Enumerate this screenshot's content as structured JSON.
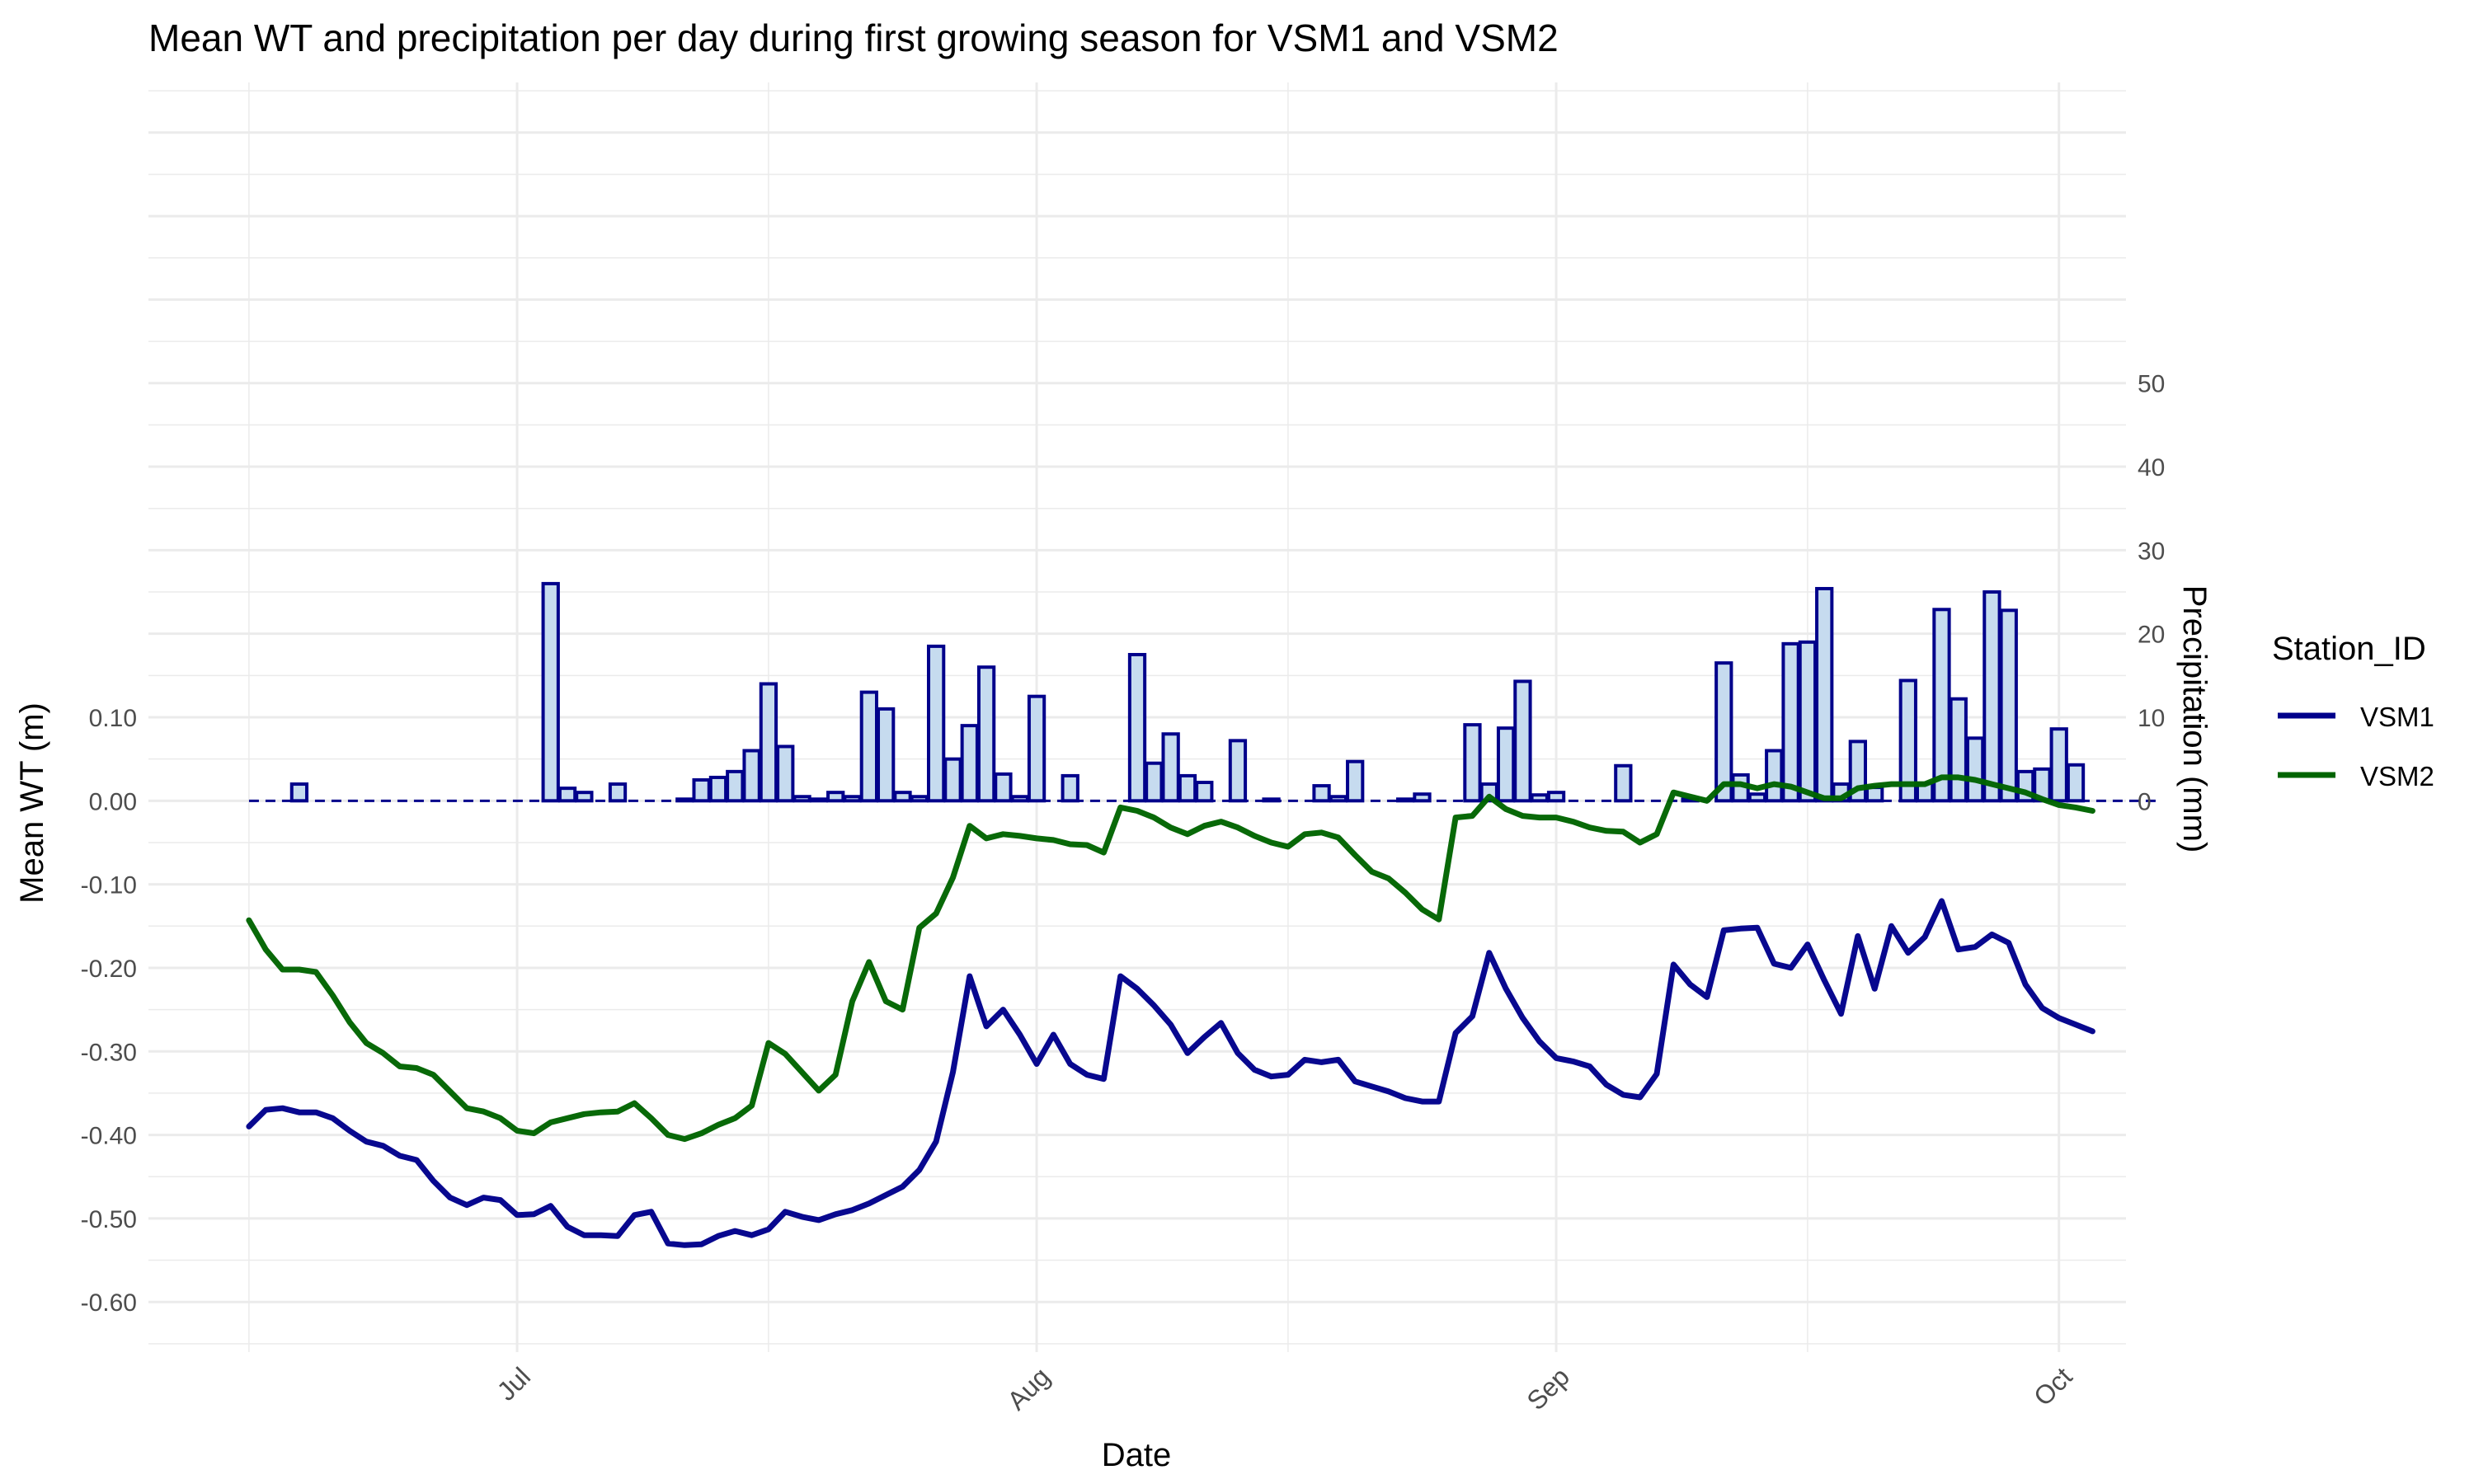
{
  "chart_data": {
    "type": "line",
    "title": "Mean WT and precipitation per day during first growing season for VSM1 and VSM2",
    "xlabel": "Date",
    "ylabel": "Mean WT (m)",
    "ylabel_right": "Precipitation (mm)",
    "xlim": [
      "2023-06-09",
      "2023-10-05"
    ],
    "ylim": [
      -0.66,
      0.86
    ],
    "y2lim": [
      0,
      50
    ],
    "y2_to_y1_scale": "0.01 m per mm",
    "x_ticks": [
      {
        "date": "2023-07-01",
        "label": "Jul"
      },
      {
        "date": "2023-08-01",
        "label": "Aug"
      },
      {
        "date": "2023-09-01",
        "label": "Sep"
      },
      {
        "date": "2023-10-01",
        "label": "Oct"
      }
    ],
    "y_ticks": [
      {
        "value": 0.1,
        "label": "0.10"
      },
      {
        "value": 0.0,
        "label": "0.00"
      },
      {
        "value": -0.1,
        "label": "-0.10"
      },
      {
        "value": -0.2,
        "label": "-0.20"
      },
      {
        "value": -0.3,
        "label": "-0.30"
      },
      {
        "value": -0.4,
        "label": "-0.40"
      },
      {
        "value": -0.5,
        "label": "-0.50"
      },
      {
        "value": -0.6,
        "label": "-0.60"
      }
    ],
    "y2_ticks": [
      {
        "value": 0,
        "label": "0"
      },
      {
        "value": 10,
        "label": "10"
      },
      {
        "value": 20,
        "label": "20"
      },
      {
        "value": 30,
        "label": "30"
      },
      {
        "value": 40,
        "label": "40"
      },
      {
        "value": 50,
        "label": "50"
      }
    ],
    "legend": {
      "title": "Station_ID",
      "position": "right"
    },
    "grid": true,
    "series": [
      {
        "name": "VSM1",
        "color": "#00008b",
        "start_date": "2023-06-15",
        "values": [
          -0.39,
          -0.37,
          -0.368,
          -0.373,
          -0.373,
          -0.38,
          -0.395,
          -0.408,
          -0.413,
          -0.425,
          -0.43,
          -0.455,
          -0.475,
          -0.484,
          -0.475,
          -0.478,
          -0.496,
          -0.495,
          -0.485,
          -0.51,
          -0.52,
          -0.52,
          -0.521,
          -0.496,
          -0.492,
          -0.53,
          -0.532,
          -0.531,
          -0.521,
          -0.515,
          -0.52,
          -0.513,
          -0.492,
          -0.498,
          -0.502,
          -0.495,
          -0.49,
          -0.482,
          -0.472,
          -0.462,
          -0.442,
          -0.408,
          -0.325,
          -0.21,
          -0.27,
          -0.25,
          -0.28,
          -0.315,
          -0.28,
          -0.315,
          -0.328,
          -0.333,
          -0.21,
          -0.225,
          -0.245,
          -0.268,
          -0.302,
          -0.283,
          -0.266,
          -0.302,
          -0.322,
          -0.33,
          -0.328,
          -0.31,
          -0.313,
          -0.31,
          -0.336,
          -0.342,
          -0.348,
          -0.356,
          -0.36,
          -0.36,
          -0.278,
          -0.258,
          -0.182,
          -0.225,
          -0.26,
          -0.288,
          -0.308,
          -0.312,
          -0.318,
          -0.34,
          -0.352,
          -0.355,
          -0.327,
          -0.196,
          -0.22,
          -0.235,
          -0.155,
          -0.153,
          -0.152,
          -0.195,
          -0.2,
          -0.172,
          -0.215,
          -0.255,
          -0.162,
          -0.225,
          -0.15,
          -0.182,
          -0.163,
          -0.12,
          -0.178,
          -0.175,
          -0.16,
          -0.17,
          -0.22,
          -0.248,
          -0.26,
          -0.268,
          -0.276
        ]
      },
      {
        "name": "VSM2",
        "color": "#006400",
        "start_date": "2023-06-15",
        "values": [
          -0.143,
          -0.178,
          -0.202,
          -0.202,
          -0.205,
          -0.233,
          -0.265,
          -0.29,
          -0.302,
          -0.318,
          -0.32,
          -0.328,
          -0.348,
          -0.368,
          -0.372,
          -0.38,
          -0.395,
          -0.398,
          -0.385,
          -0.38,
          -0.375,
          -0.373,
          -0.372,
          -0.362,
          -0.38,
          -0.4,
          -0.405,
          -0.398,
          -0.388,
          -0.38,
          -0.365,
          -0.29,
          -0.303,
          -0.325,
          -0.347,
          -0.328,
          -0.24,
          -0.193,
          -0.24,
          -0.25,
          -0.152,
          -0.135,
          -0.092,
          -0.03,
          -0.045,
          -0.04,
          -0.042,
          -0.045,
          -0.047,
          -0.052,
          -0.053,
          -0.062,
          -0.008,
          -0.012,
          -0.02,
          -0.032,
          -0.04,
          -0.03,
          -0.025,
          -0.032,
          -0.042,
          -0.05,
          -0.055,
          -0.04,
          -0.038,
          -0.044,
          -0.065,
          -0.085,
          -0.093,
          -0.11,
          -0.13,
          -0.142,
          -0.02,
          -0.018,
          0.005,
          -0.01,
          -0.018,
          -0.02,
          -0.02,
          -0.025,
          -0.032,
          -0.036,
          -0.037,
          -0.05,
          -0.04,
          0.01,
          0.005,
          0.0,
          0.02,
          0.02,
          0.015,
          0.02,
          0.017,
          0.01,
          0.003,
          0.003,
          0.015,
          0.018,
          0.02,
          0.02,
          0.02,
          0.028,
          0.028,
          0.025,
          0.02,
          0.015,
          0.01,
          0.002,
          -0.005,
          -0.008,
          -0.012
        ]
      },
      {
        "name": "",
        "role": "precipitation_bars_mm",
        "bar_fill": "#c6dbef",
        "bar_border": "#00008b",
        "start_date": "2023-06-15",
        "values": [
          0,
          0,
          0,
          2,
          0,
          0,
          0,
          0,
          0,
          0,
          0,
          0,
          0,
          0,
          0,
          0,
          0,
          0,
          26,
          1.5,
          1,
          0,
          2,
          0,
          0,
          0,
          0.2,
          2.5,
          2.8,
          3.5,
          6,
          14,
          6.5,
          0.5,
          0.2,
          1,
          0.5,
          13,
          11,
          1,
          0.5,
          18.5,
          5,
          9,
          16,
          3.2,
          0.5,
          12.5,
          0,
          3,
          0,
          0,
          0,
          17.5,
          4.5,
          8,
          3,
          2.2,
          0,
          7.2,
          0,
          0.2,
          0,
          0,
          1.8,
          0.5,
          4.7,
          0,
          0,
          0.2,
          0.8,
          0,
          0,
          9.1,
          2,
          8.7,
          14.3,
          0.7,
          1,
          0,
          0,
          0,
          4.2,
          0,
          0,
          0,
          0.2,
          0,
          16.5,
          3.1,
          0.8,
          6,
          18.8,
          19,
          25.4,
          2,
          7.1,
          1.6,
          0,
          14.4,
          2.1,
          22.9,
          12.2,
          7.5,
          25,
          22.8,
          3.5,
          3.8,
          8.6,
          4.3,
          0,
          0,
          0,
          0,
          0
        ]
      }
    ]
  }
}
